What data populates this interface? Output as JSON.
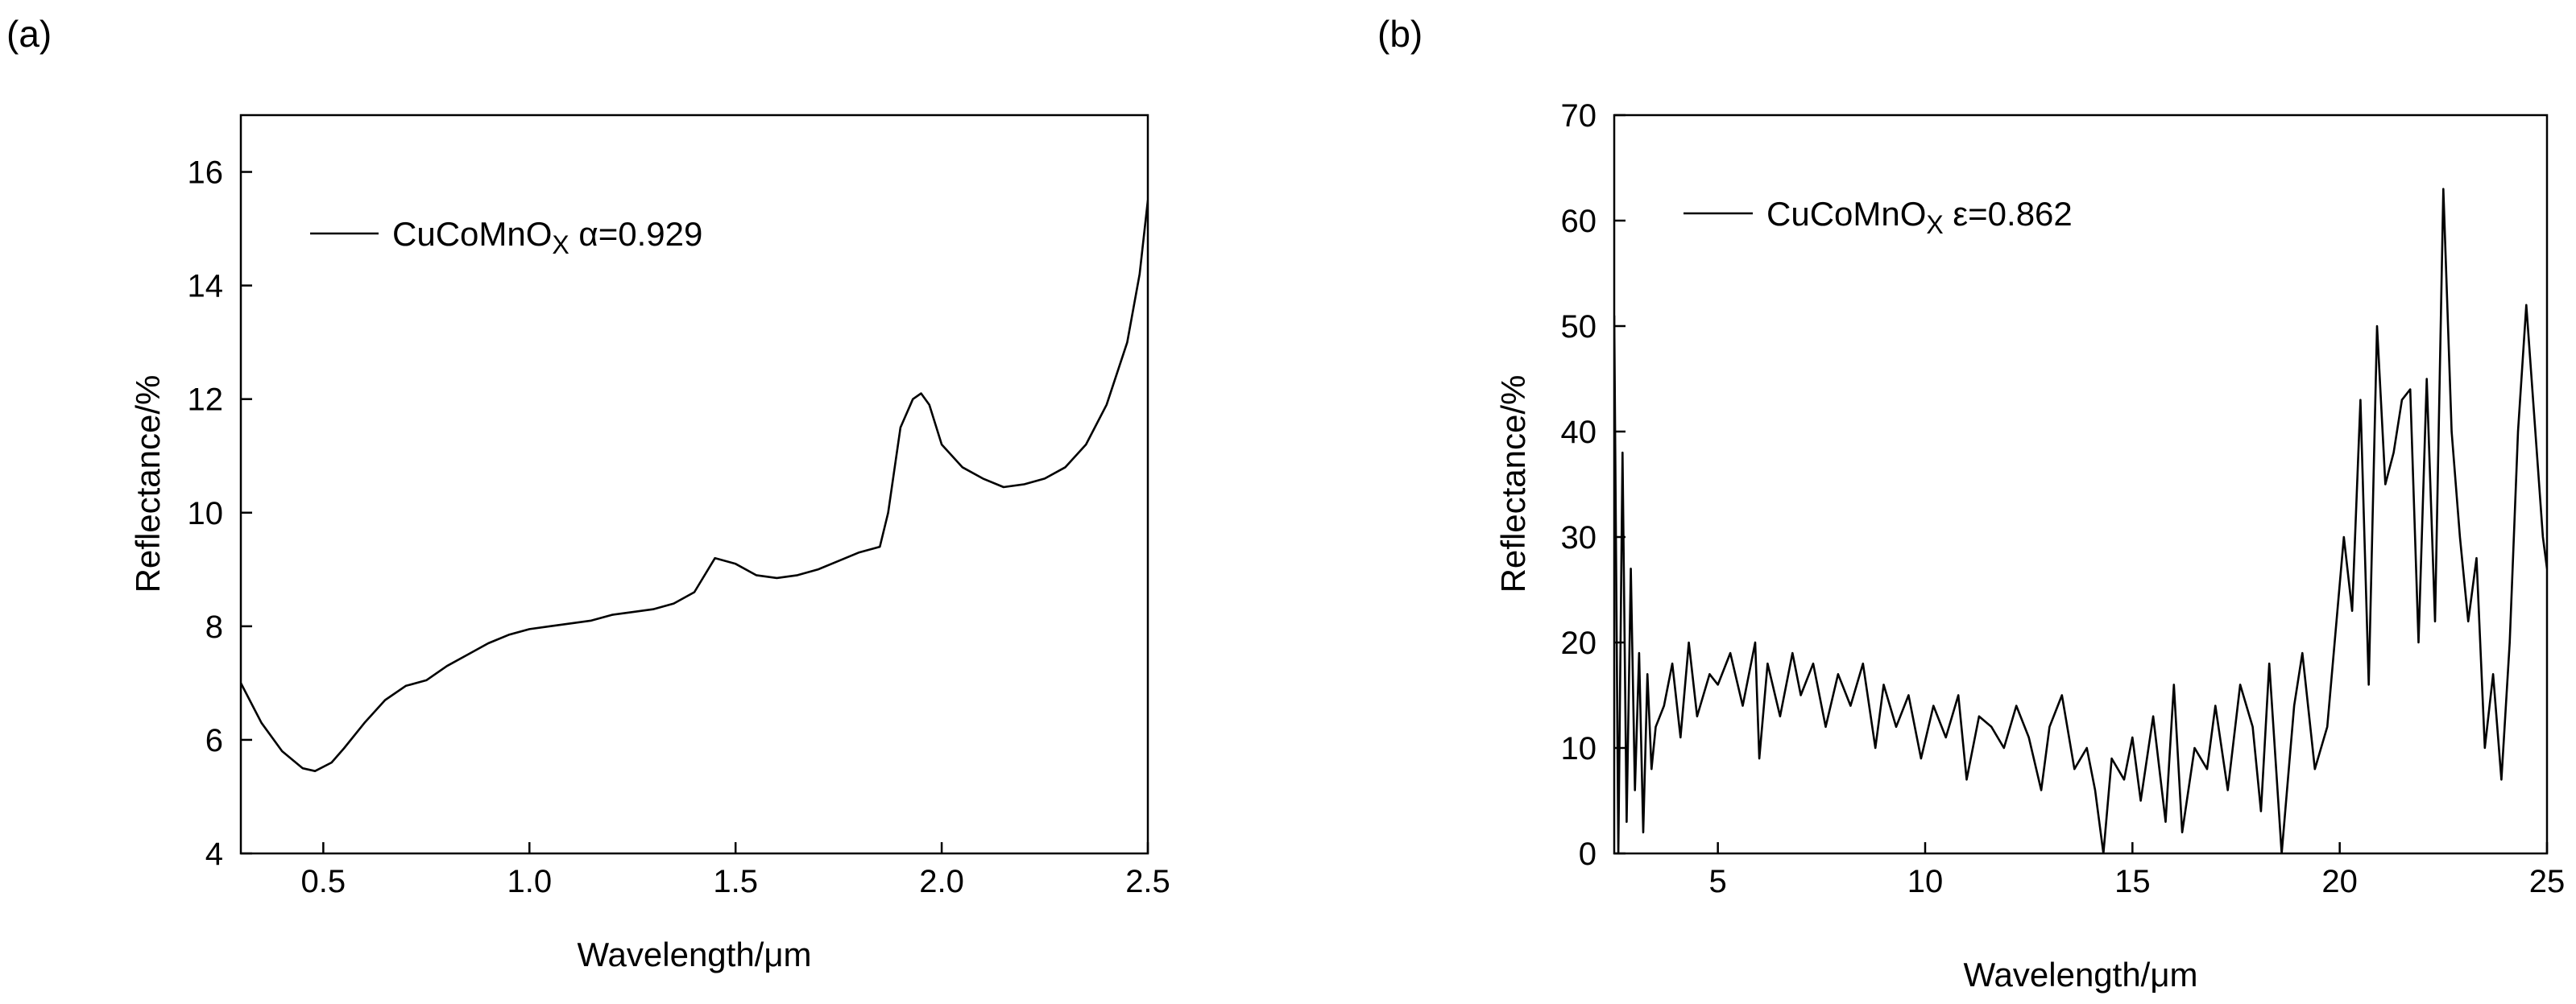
{
  "chart_data": [
    {
      "panel_label": "(a)",
      "type": "line",
      "xlabel": "Wavelength/μm",
      "ylabel": "Reflectance/%",
      "xlim": [
        0.3,
        2.5
      ],
      "ylim": [
        4,
        17
      ],
      "xticks": [
        0.5,
        1.0,
        1.5,
        2.0,
        2.5
      ],
      "xtick_labels": [
        "0.5",
        "1.0",
        "1.5",
        "2.0",
        "2.5"
      ],
      "yticks": [
        4,
        6,
        8,
        10,
        12,
        14,
        16
      ],
      "ytick_labels": [
        "4",
        "6",
        "8",
        "10",
        "12",
        "14",
        "16"
      ],
      "grid": false,
      "legend": {
        "placement": "top-left",
        "label_main": "CuCoMnO",
        "label_sub": "X",
        "label_value": " α=0.929"
      },
      "series": [
        {
          "x": [
            0.3,
            0.35,
            0.4,
            0.45,
            0.48,
            0.52,
            0.55,
            0.6,
            0.65,
            0.7,
            0.75,
            0.8,
            0.85,
            0.9,
            0.95,
            1.0,
            1.05,
            1.1,
            1.15,
            1.2,
            1.25,
            1.3,
            1.35,
            1.4,
            1.45,
            1.5,
            1.55,
            1.6,
            1.65,
            1.7,
            1.75,
            1.8,
            1.85,
            1.87,
            1.9,
            1.93,
            1.95,
            1.97,
            2.0,
            2.05,
            2.1,
            2.15,
            2.2,
            2.25,
            2.3,
            2.35,
            2.4,
            2.45,
            2.48,
            2.5
          ],
          "y": [
            7.0,
            6.3,
            5.8,
            5.5,
            5.45,
            5.6,
            5.85,
            6.3,
            6.7,
            6.95,
            7.05,
            7.3,
            7.5,
            7.7,
            7.85,
            7.95,
            8.0,
            8.05,
            8.1,
            8.2,
            8.25,
            8.3,
            8.4,
            8.6,
            9.2,
            9.1,
            8.9,
            8.85,
            8.9,
            9.0,
            9.15,
            9.3,
            9.4,
            10.0,
            11.5,
            12.0,
            12.1,
            11.9,
            11.2,
            10.8,
            10.6,
            10.45,
            10.5,
            10.6,
            10.8,
            11.2,
            11.9,
            13.0,
            14.2,
            15.5
          ]
        }
      ]
    },
    {
      "panel_label": "(b)",
      "type": "line",
      "xlabel": "Wavelength/μm",
      "ylabel": "Reflectance/%",
      "xlim": [
        2.5,
        25
      ],
      "ylim": [
        0,
        70
      ],
      "xticks": [
        5,
        10,
        15,
        20,
        25
      ],
      "xtick_labels": [
        "5",
        "10",
        "15",
        "20",
        "25"
      ],
      "yticks": [
        0,
        10,
        20,
        30,
        40,
        50,
        60,
        70
      ],
      "ytick_labels": [
        "0",
        "10",
        "20",
        "30",
        "40",
        "50",
        "60",
        "70"
      ],
      "grid": false,
      "legend": {
        "placement": "top-left",
        "label_main": "CuCoMnO",
        "label_sub": "X",
        "label_value": " ε=0.862"
      },
      "series": [
        {
          "x": [
            2.5,
            2.6,
            2.7,
            2.8,
            2.9,
            3.0,
            3.1,
            3.2,
            3.3,
            3.4,
            3.5,
            3.7,
            3.9,
            4.1,
            4.3,
            4.5,
            4.8,
            5.0,
            5.3,
            5.6,
            5.9,
            6.0,
            6.2,
            6.5,
            6.8,
            7.0,
            7.3,
            7.6,
            7.9,
            8.2,
            8.5,
            8.8,
            9.0,
            9.3,
            9.6,
            9.9,
            10.2,
            10.5,
            10.8,
            11.0,
            11.3,
            11.6,
            11.9,
            12.2,
            12.5,
            12.8,
            13.0,
            13.3,
            13.6,
            13.9,
            14.1,
            14.3,
            14.5,
            14.8,
            15.0,
            15.2,
            15.5,
            15.8,
            16.0,
            16.2,
            16.5,
            16.8,
            17.0,
            17.3,
            17.6,
            17.9,
            18.1,
            18.3,
            18.6,
            18.9,
            19.1,
            19.4,
            19.7,
            19.9,
            20.1,
            20.3,
            20.5,
            20.7,
            20.9,
            21.1,
            21.3,
            21.5,
            21.7,
            21.9,
            22.1,
            22.3,
            22.5,
            22.7,
            22.9,
            23.1,
            23.3,
            23.5,
            23.7,
            23.9,
            24.1,
            24.3,
            24.5,
            24.7,
            24.9,
            25.0
          ],
          "y": [
            51,
            0,
            38,
            3,
            27,
            6,
            19,
            2,
            17,
            8,
            12,
            14,
            18,
            11,
            20,
            13,
            17,
            16,
            19,
            14,
            20,
            9,
            18,
            13,
            19,
            15,
            18,
            12,
            17,
            14,
            18,
            10,
            16,
            12,
            15,
            9,
            14,
            11,
            15,
            7,
            13,
            12,
            10,
            14,
            11,
            6,
            12,
            15,
            8,
            10,
            6,
            0,
            9,
            7,
            11,
            5,
            13,
            3,
            16,
            2,
            10,
            8,
            14,
            6,
            16,
            12,
            4,
            18,
            0,
            14,
            19,
            8,
            12,
            21,
            30,
            23,
            43,
            16,
            50,
            35,
            38,
            43,
            44,
            20,
            45,
            22,
            63,
            40,
            30,
            22,
            28,
            10,
            17,
            7,
            20,
            40,
            52,
            41,
            30,
            27
          ]
        }
      ]
    }
  ]
}
